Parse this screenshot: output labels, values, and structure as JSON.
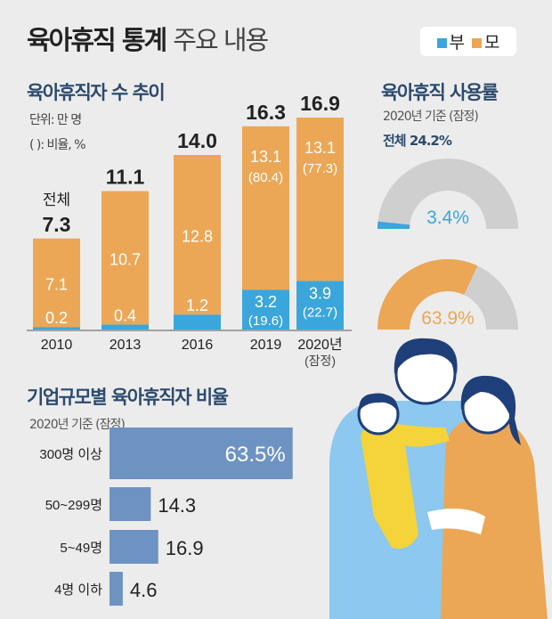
{
  "title": {
    "bold": "육아휴직 통계",
    "light": "주요 내용"
  },
  "legend": [
    {
      "label": "부",
      "color": "#3aa6dc"
    },
    {
      "label": "모",
      "color": "#eba756"
    }
  ],
  "colors": {
    "father": "#3aa6dc",
    "mother": "#eba756",
    "gauge_bg": "#cfcfcf",
    "hbar": "#6d93c2",
    "background": "#ececec"
  },
  "chart_data": [
    {
      "type": "bar",
      "stacked": true,
      "title": "육아휴직자 수 추이",
      "unit_note": "단위: 만 명",
      "ratio_note": "( ): 비율, %",
      "total_label": "전체",
      "categories": [
        "2010",
        "2013",
        "2016",
        "2019",
        "2020년"
      ],
      "category_notes": [
        "",
        "",
        "",
        "",
        "(잠정)"
      ],
      "totals": [
        "7.3",
        "11.1",
        "14.0",
        "16.3",
        "16.9"
      ],
      "series": [
        {
          "name": "부",
          "values": [
            0.2,
            0.4,
            1.2,
            3.2,
            3.9
          ],
          "labels": [
            "0.2",
            "0.4",
            "1.2",
            "3.2",
            "3.9"
          ],
          "ratios": [
            "",
            "",
            "",
            "(19.6)",
            "(22.7)"
          ]
        },
        {
          "name": "모",
          "values": [
            7.1,
            10.7,
            12.8,
            13.1,
            13.1
          ],
          "labels": [
            "7.1",
            "10.7",
            "12.8",
            "13.1",
            "13.1"
          ],
          "ratios": [
            "",
            "",
            "",
            "(80.4)",
            "(77.3)"
          ]
        }
      ]
    },
    {
      "type": "gauge",
      "title": "육아휴직 사용률",
      "note": "2020년 기준 (잠정)",
      "total_text": "전체 24.2%",
      "gauges": [
        {
          "series": "부",
          "value": 3.4,
          "label": "3.4%"
        },
        {
          "series": "모",
          "value": 63.9,
          "label": "63.9%"
        }
      ]
    },
    {
      "type": "bar",
      "orientation": "horizontal",
      "title": "기업규모별 육아휴직자 비율",
      "note": "2020년 기준 (잠정)",
      "categories": [
        "300명 이상",
        "50~299명",
        "5~49명",
        "4명 이하"
      ],
      "values": [
        63.5,
        14.3,
        16.9,
        4.6
      ],
      "labels": [
        "63.5%",
        "14.3",
        "16.9",
        "4.6"
      ]
    }
  ]
}
